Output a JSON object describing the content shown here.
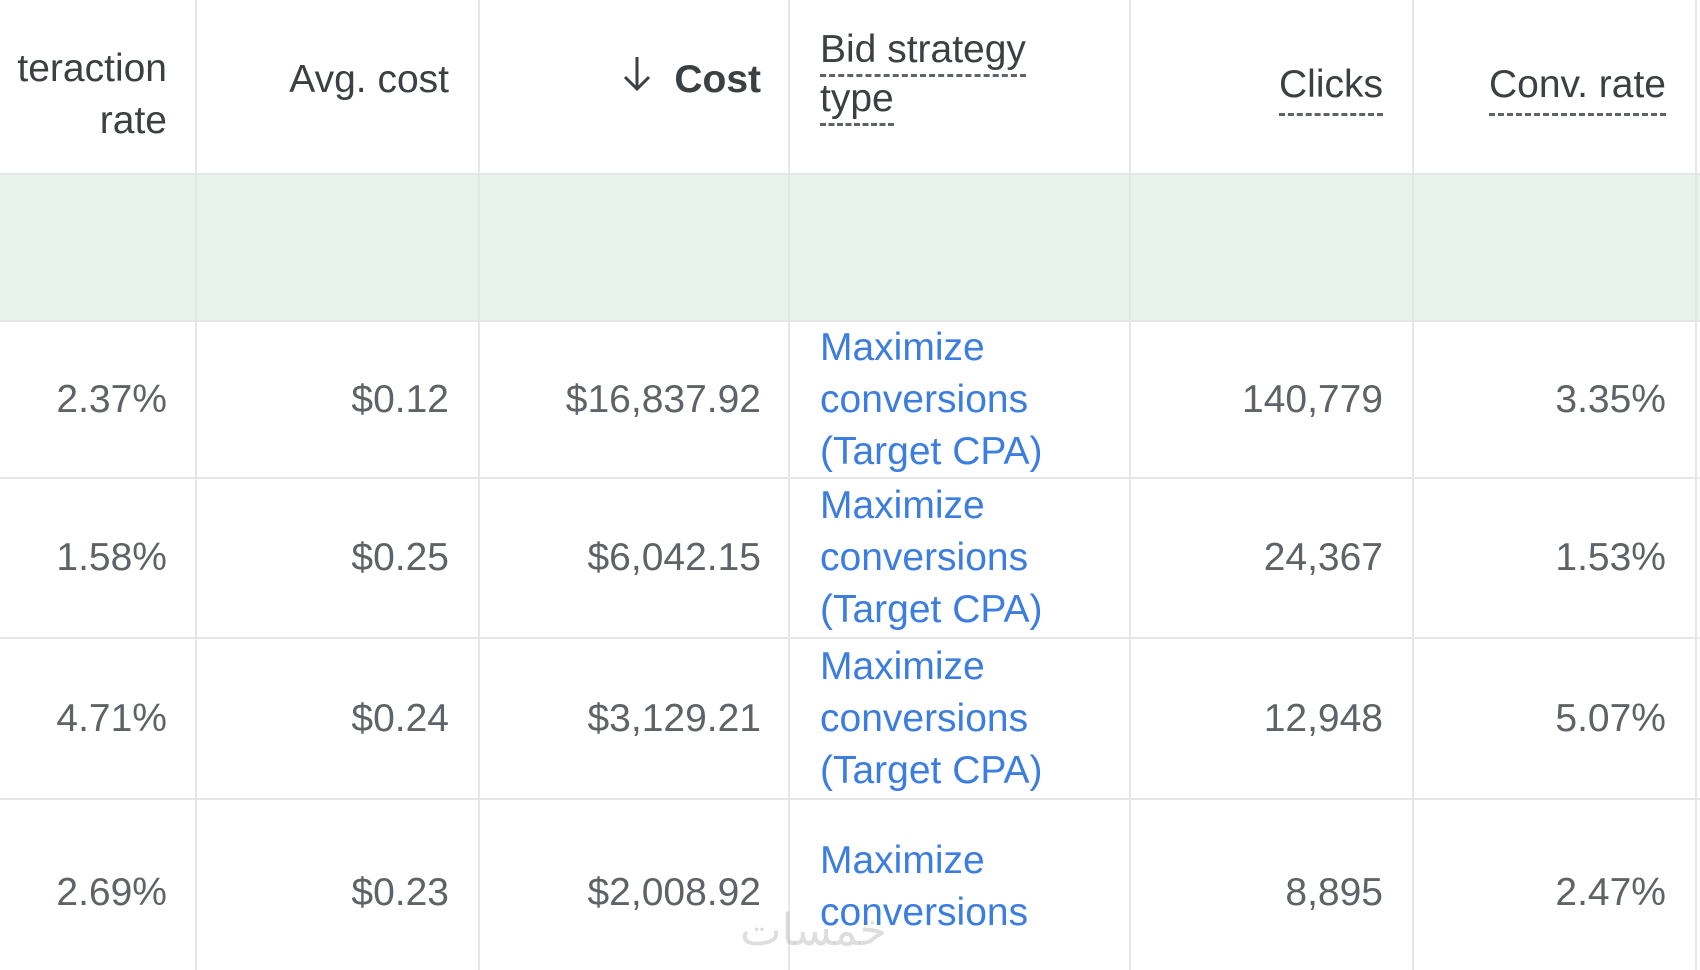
{
  "columns": {
    "interaction_rate": "teraction rate",
    "avg_cost": "Avg. cost",
    "cost": "Cost",
    "bid_strategy_line1": "Bid strategy",
    "bid_strategy_line2": "type",
    "clicks": "Clicks",
    "conv_rate": "Conv. rate"
  },
  "sort_icon": "arrow-down-icon",
  "rows": [
    {
      "interaction_rate": "2.37%",
      "avg_cost": "$0.12",
      "cost": "$16,837.92",
      "bid_l1": "Maximize",
      "bid_l2": "conversions",
      "bid_l3": "(Target CPA)",
      "clicks": "140,779",
      "conv_rate": "3.35%"
    },
    {
      "interaction_rate": "1.58%",
      "avg_cost": "$0.25",
      "cost": "$6,042.15",
      "bid_l1": "Maximize",
      "bid_l2": "conversions",
      "bid_l3": "(Target CPA)",
      "clicks": "24,367",
      "conv_rate": "1.53%"
    },
    {
      "interaction_rate": "4.71%",
      "avg_cost": "$0.24",
      "cost": "$3,129.21",
      "bid_l1": "Maximize",
      "bid_l2": "conversions",
      "bid_l3": "(Target CPA)",
      "clicks": "12,948",
      "conv_rate": "5.07%"
    },
    {
      "interaction_rate": "2.69%",
      "avg_cost": "$0.23",
      "cost": "$2,008.92",
      "bid_l1": "Maximize",
      "bid_l2": "conversions",
      "bid_l3": "",
      "clicks": "8,895",
      "conv_rate": "2.47%"
    }
  ],
  "colors": {
    "link": "#3c7de0",
    "total_band": "#e8f3ec",
    "grid": "#e4e6e8",
    "text": "#5f6368"
  },
  "watermark": "خمسات"
}
